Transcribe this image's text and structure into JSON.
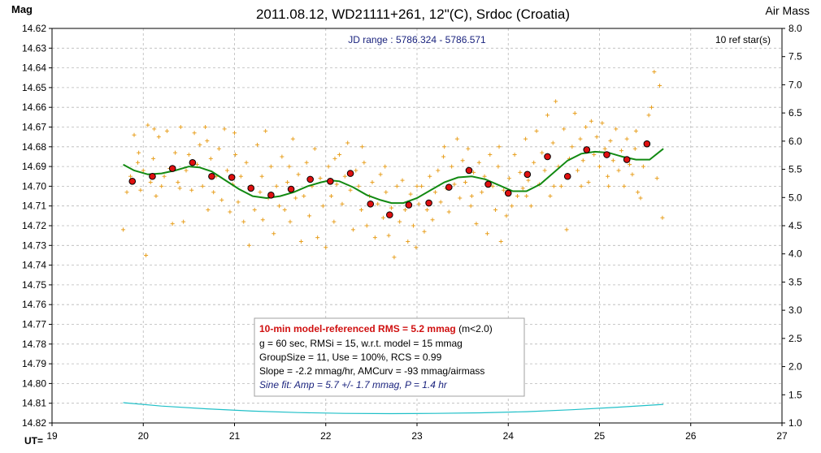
{
  "chart_data": {
    "type": "scatter",
    "title": "2011.08.12, WD21111+261, 12\"(C), Srdoc (Croatia)",
    "ylabel_left": "Mag",
    "ylabel_right": "Air Mass",
    "xlabel": "UT=",
    "jd_range_label": "JD range : 5786.324 - 5786.571",
    "ref_stars_label": "10 ref star(s)",
    "x_range": [
      19,
      27
    ],
    "x_ticks": [
      "19",
      "20",
      "21",
      "22",
      "23",
      "24",
      "25",
      "26",
      "27"
    ],
    "y_left_range": [
      14.62,
      14.82
    ],
    "y_left_reversed": true,
    "y_left_ticks": [
      "14.62",
      "14.63",
      "14.64",
      "14.65",
      "14.66",
      "14.67",
      "14.68",
      "14.69",
      "14.70",
      "14.71",
      "14.72",
      "14.73",
      "14.74",
      "14.75",
      "14.76",
      "14.77",
      "14.78",
      "14.79",
      "14.80",
      "14.81",
      "14.82"
    ],
    "y_right_range": [
      1.0,
      8.0
    ],
    "y_right_ticks": [
      "1.0",
      "1.5",
      "2.0",
      "2.5",
      "3.0",
      "3.5",
      "4.0",
      "4.5",
      "5.0",
      "5.5",
      "6.0",
      "6.5",
      "7.0",
      "7.5",
      "8.0"
    ],
    "grid": true,
    "colors": {
      "raw": "#e8a020",
      "binned": "#e01010",
      "model": "#128a12",
      "airmass": "#20c0c8",
      "title": "#000000",
      "jd": "#1a237e",
      "grid": "#b8b8b8"
    },
    "binned_points": [
      {
        "x": 19.88,
        "y": 14.6975
      },
      {
        "x": 20.1,
        "y": 14.695
      },
      {
        "x": 20.32,
        "y": 14.691
      },
      {
        "x": 20.54,
        "y": 14.688
      },
      {
        "x": 20.75,
        "y": 14.695
      },
      {
        "x": 20.97,
        "y": 14.6955
      },
      {
        "x": 21.18,
        "y": 14.701
      },
      {
        "x": 21.4,
        "y": 14.7045
      },
      {
        "x": 21.62,
        "y": 14.7015
      },
      {
        "x": 21.83,
        "y": 14.6965
      },
      {
        "x": 22.05,
        "y": 14.6975
      },
      {
        "x": 22.27,
        "y": 14.6935
      },
      {
        "x": 22.49,
        "y": 14.709
      },
      {
        "x": 22.7,
        "y": 14.7145
      },
      {
        "x": 22.91,
        "y": 14.7095
      },
      {
        "x": 23.13,
        "y": 14.7085
      },
      {
        "x": 23.35,
        "y": 14.7005
      },
      {
        "x": 23.57,
        "y": 14.692
      },
      {
        "x": 23.78,
        "y": 14.699
      },
      {
        "x": 24.0,
        "y": 14.7035
      },
      {
        "x": 24.21,
        "y": 14.694
      },
      {
        "x": 24.43,
        "y": 14.685
      },
      {
        "x": 24.65,
        "y": 14.695
      },
      {
        "x": 24.86,
        "y": 14.6815
      },
      {
        "x": 25.08,
        "y": 14.684
      },
      {
        "x": 25.3,
        "y": 14.6865
      },
      {
        "x": 25.52,
        "y": 14.6785
      }
    ],
    "model_curve": [
      {
        "x": 19.78,
        "y": 14.689
      },
      {
        "x": 19.9,
        "y": 14.692
      },
      {
        "x": 20.05,
        "y": 14.694
      },
      {
        "x": 20.2,
        "y": 14.6935
      },
      {
        "x": 20.35,
        "y": 14.692
      },
      {
        "x": 20.5,
        "y": 14.69
      },
      {
        "x": 20.62,
        "y": 14.6905
      },
      {
        "x": 20.75,
        "y": 14.6925
      },
      {
        "x": 20.9,
        "y": 14.697
      },
      {
        "x": 21.05,
        "y": 14.7015
      },
      {
        "x": 21.2,
        "y": 14.705
      },
      {
        "x": 21.35,
        "y": 14.706
      },
      {
        "x": 21.5,
        "y": 14.705
      },
      {
        "x": 21.65,
        "y": 14.703
      },
      {
        "x": 21.8,
        "y": 14.7
      },
      {
        "x": 21.95,
        "y": 14.698
      },
      {
        "x": 22.05,
        "y": 14.697
      },
      {
        "x": 22.15,
        "y": 14.6975
      },
      {
        "x": 22.3,
        "y": 14.7005
      },
      {
        "x": 22.45,
        "y": 14.7045
      },
      {
        "x": 22.6,
        "y": 14.707
      },
      {
        "x": 22.72,
        "y": 14.7085
      },
      {
        "x": 22.85,
        "y": 14.7085
      },
      {
        "x": 23.0,
        "y": 14.706
      },
      {
        "x": 23.15,
        "y": 14.702
      },
      {
        "x": 23.3,
        "y": 14.698
      },
      {
        "x": 23.45,
        "y": 14.6955
      },
      {
        "x": 23.6,
        "y": 14.695
      },
      {
        "x": 23.75,
        "y": 14.6965
      },
      {
        "x": 23.9,
        "y": 14.6995
      },
      {
        "x": 24.05,
        "y": 14.7025
      },
      {
        "x": 24.2,
        "y": 14.7025
      },
      {
        "x": 24.35,
        "y": 14.699
      },
      {
        "x": 24.5,
        "y": 14.693
      },
      {
        "x": 24.65,
        "y": 14.687
      },
      {
        "x": 24.8,
        "y": 14.6835
      },
      {
        "x": 24.95,
        "y": 14.6825
      },
      {
        "x": 25.1,
        "y": 14.683
      },
      {
        "x": 25.25,
        "y": 14.685
      },
      {
        "x": 25.4,
        "y": 14.6865
      },
      {
        "x": 25.55,
        "y": 14.6865
      },
      {
        "x": 25.7,
        "y": 14.681
      }
    ],
    "airmass_curve": [
      {
        "x": 19.78,
        "y": 1.36
      },
      {
        "x": 20.2,
        "y": 1.3
      },
      {
        "x": 20.7,
        "y": 1.25
      },
      {
        "x": 21.2,
        "y": 1.21
      },
      {
        "x": 21.7,
        "y": 1.185
      },
      {
        "x": 22.2,
        "y": 1.17
      },
      {
        "x": 22.7,
        "y": 1.165
      },
      {
        "x": 23.2,
        "y": 1.17
      },
      {
        "x": 23.7,
        "y": 1.18
      },
      {
        "x": 24.2,
        "y": 1.2
      },
      {
        "x": 24.7,
        "y": 1.235
      },
      {
        "x": 25.2,
        "y": 1.28
      },
      {
        "x": 25.7,
        "y": 1.33
      }
    ],
    "raw_points": [
      {
        "x": 19.78,
        "y": 14.722
      },
      {
        "x": 19.82,
        "y": 14.703
      },
      {
        "x": 19.86,
        "y": 14.695
      },
      {
        "x": 19.9,
        "y": 14.674
      },
      {
        "x": 19.94,
        "y": 14.688
      },
      {
        "x": 19.97,
        "y": 14.702
      },
      {
        "x": 20.0,
        "y": 14.692
      },
      {
        "x": 20.03,
        "y": 14.735
      },
      {
        "x": 20.05,
        "y": 14.669
      },
      {
        "x": 20.08,
        "y": 14.698
      },
      {
        "x": 20.11,
        "y": 14.686
      },
      {
        "x": 20.14,
        "y": 14.705
      },
      {
        "x": 20.17,
        "y": 14.675
      },
      {
        "x": 20.2,
        "y": 14.7
      },
      {
        "x": 20.23,
        "y": 14.695
      },
      {
        "x": 20.26,
        "y": 14.672
      },
      {
        "x": 20.29,
        "y": 14.691
      },
      {
        "x": 20.32,
        "y": 14.719
      },
      {
        "x": 20.35,
        "y": 14.683
      },
      {
        "x": 20.38,
        "y": 14.698
      },
      {
        "x": 20.41,
        "y": 14.67
      },
      {
        "x": 20.44,
        "y": 14.718
      },
      {
        "x": 20.47,
        "y": 14.692
      },
      {
        "x": 20.5,
        "y": 14.684
      },
      {
        "x": 20.53,
        "y": 14.702
      },
      {
        "x": 20.56,
        "y": 14.673
      },
      {
        "x": 20.59,
        "y": 14.689
      },
      {
        "x": 20.62,
        "y": 14.679
      },
      {
        "x": 20.65,
        "y": 14.7
      },
      {
        "x": 20.68,
        "y": 14.67
      },
      {
        "x": 20.71,
        "y": 14.712
      },
      {
        "x": 20.74,
        "y": 14.686
      },
      {
        "x": 20.77,
        "y": 14.703
      },
      {
        "x": 20.8,
        "y": 14.695
      },
      {
        "x": 20.83,
        "y": 14.681
      },
      {
        "x": 20.86,
        "y": 14.707
      },
      {
        "x": 20.89,
        "y": 14.671
      },
      {
        "x": 20.92,
        "y": 14.692
      },
      {
        "x": 20.95,
        "y": 14.713
      },
      {
        "x": 20.98,
        "y": 14.699
      },
      {
        "x": 21.01,
        "y": 14.684
      },
      {
        "x": 21.04,
        "y": 14.708
      },
      {
        "x": 21.07,
        "y": 14.695
      },
      {
        "x": 21.1,
        "y": 14.718
      },
      {
        "x": 21.13,
        "y": 14.688
      },
      {
        "x": 21.16,
        "y": 14.73
      },
      {
        "x": 21.19,
        "y": 14.7
      },
      {
        "x": 21.22,
        "y": 14.712
      },
      {
        "x": 21.25,
        "y": 14.679
      },
      {
        "x": 21.28,
        "y": 14.703
      },
      {
        "x": 21.31,
        "y": 14.717
      },
      {
        "x": 21.34,
        "y": 14.672
      },
      {
        "x": 21.37,
        "y": 14.706
      },
      {
        "x": 21.4,
        "y": 14.69
      },
      {
        "x": 21.43,
        "y": 14.724
      },
      {
        "x": 21.46,
        "y": 14.7
      },
      {
        "x": 21.49,
        "y": 14.71
      },
      {
        "x": 21.52,
        "y": 14.685
      },
      {
        "x": 21.55,
        "y": 14.712
      },
      {
        "x": 21.58,
        "y": 14.698
      },
      {
        "x": 21.61,
        "y": 14.718
      },
      {
        "x": 21.64,
        "y": 14.676
      },
      {
        "x": 21.67,
        "y": 14.706
      },
      {
        "x": 21.7,
        "y": 14.694
      },
      {
        "x": 21.73,
        "y": 14.728
      },
      {
        "x": 21.76,
        "y": 14.705
      },
      {
        "x": 21.79,
        "y": 14.688
      },
      {
        "x": 21.82,
        "y": 14.715
      },
      {
        "x": 21.85,
        "y": 14.7
      },
      {
        "x": 21.88,
        "y": 14.681
      },
      {
        "x": 21.91,
        "y": 14.726
      },
      {
        "x": 21.94,
        "y": 14.696
      },
      {
        "x": 21.97,
        "y": 14.71
      },
      {
        "x": 22.0,
        "y": 14.731
      },
      {
        "x": 22.03,
        "y": 14.69
      },
      {
        "x": 22.06,
        "y": 14.705
      },
      {
        "x": 22.09,
        "y": 14.718
      },
      {
        "x": 22.12,
        "y": 14.699
      },
      {
        "x": 22.15,
        "y": 14.684
      },
      {
        "x": 22.18,
        "y": 14.709
      },
      {
        "x": 22.21,
        "y": 14.695
      },
      {
        "x": 22.24,
        "y": 14.678
      },
      {
        "x": 22.27,
        "y": 14.702
      },
      {
        "x": 22.3,
        "y": 14.722
      },
      {
        "x": 22.33,
        "y": 14.692
      },
      {
        "x": 22.36,
        "y": 14.7
      },
      {
        "x": 22.39,
        "y": 14.712
      },
      {
        "x": 22.42,
        "y": 14.688
      },
      {
        "x": 22.45,
        "y": 14.72
      },
      {
        "x": 22.48,
        "y": 14.705
      },
      {
        "x": 22.51,
        "y": 14.698
      },
      {
        "x": 22.54,
        "y": 14.726
      },
      {
        "x": 22.57,
        "y": 14.709
      },
      {
        "x": 22.6,
        "y": 14.694
      },
      {
        "x": 22.63,
        "y": 14.716
      },
      {
        "x": 22.66,
        "y": 14.703
      },
      {
        "x": 22.69,
        "y": 14.725
      },
      {
        "x": 22.72,
        "y": 14.711
      },
      {
        "x": 22.75,
        "y": 14.736
      },
      {
        "x": 22.78,
        "y": 14.7
      },
      {
        "x": 22.81,
        "y": 14.718
      },
      {
        "x": 22.84,
        "y": 14.697
      },
      {
        "x": 22.87,
        "y": 14.712
      },
      {
        "x": 22.9,
        "y": 14.728
      },
      {
        "x": 22.93,
        "y": 14.704
      },
      {
        "x": 22.96,
        "y": 14.72
      },
      {
        "x": 22.99,
        "y": 14.731
      },
      {
        "x": 23.02,
        "y": 14.709
      },
      {
        "x": 23.05,
        "y": 14.7
      },
      {
        "x": 23.08,
        "y": 14.723
      },
      {
        "x": 23.11,
        "y": 14.712
      },
      {
        "x": 23.14,
        "y": 14.695
      },
      {
        "x": 23.17,
        "y": 14.717
      },
      {
        "x": 23.2,
        "y": 14.703
      },
      {
        "x": 23.23,
        "y": 14.692
      },
      {
        "x": 23.26,
        "y": 14.708
      },
      {
        "x": 23.29,
        "y": 14.685
      },
      {
        "x": 23.32,
        "y": 14.701
      },
      {
        "x": 23.35,
        "y": 14.713
      },
      {
        "x": 23.38,
        "y": 14.69
      },
      {
        "x": 23.41,
        "y": 14.699
      },
      {
        "x": 23.44,
        "y": 14.676
      },
      {
        "x": 23.47,
        "y": 14.706
      },
      {
        "x": 23.5,
        "y": 14.687
      },
      {
        "x": 23.53,
        "y": 14.698
      },
      {
        "x": 23.56,
        "y": 14.681
      },
      {
        "x": 23.59,
        "y": 14.71
      },
      {
        "x": 23.62,
        "y": 14.693
      },
      {
        "x": 23.65,
        "y": 14.719
      },
      {
        "x": 23.68,
        "y": 14.688
      },
      {
        "x": 23.71,
        "y": 14.703
      },
      {
        "x": 23.74,
        "y": 14.695
      },
      {
        "x": 23.77,
        "y": 14.724
      },
      {
        "x": 23.8,
        "y": 14.684
      },
      {
        "x": 23.83,
        "y": 14.7
      },
      {
        "x": 23.86,
        "y": 14.712
      },
      {
        "x": 23.89,
        "y": 14.69
      },
      {
        "x": 23.92,
        "y": 14.728
      },
      {
        "x": 23.95,
        "y": 14.702
      },
      {
        "x": 23.98,
        "y": 14.715
      },
      {
        "x": 24.01,
        "y": 14.696
      },
      {
        "x": 24.04,
        "y": 14.71
      },
      {
        "x": 24.07,
        "y": 14.684
      },
      {
        "x": 24.1,
        "y": 14.705
      },
      {
        "x": 24.13,
        "y": 14.693
      },
      {
        "x": 24.16,
        "y": 14.701
      },
      {
        "x": 24.19,
        "y": 14.676
      },
      {
        "x": 24.22,
        "y": 14.697
      },
      {
        "x": 24.25,
        "y": 14.71
      },
      {
        "x": 24.28,
        "y": 14.688
      },
      {
        "x": 24.31,
        "y": 14.672
      },
      {
        "x": 24.34,
        "y": 14.699
      },
      {
        "x": 24.37,
        "y": 14.683
      },
      {
        "x": 24.4,
        "y": 14.692
      },
      {
        "x": 24.43,
        "y": 14.664
      },
      {
        "x": 24.46,
        "y": 14.705
      },
      {
        "x": 24.49,
        "y": 14.678
      },
      {
        "x": 24.52,
        "y": 14.657
      },
      {
        "x": 24.55,
        "y": 14.69
      },
      {
        "x": 24.58,
        "y": 14.7
      },
      {
        "x": 24.61,
        "y": 14.671
      },
      {
        "x": 24.64,
        "y": 14.722
      },
      {
        "x": 24.67,
        "y": 14.686
      },
      {
        "x": 24.7,
        "y": 14.68
      },
      {
        "x": 24.73,
        "y": 14.663
      },
      {
        "x": 24.76,
        "y": 14.692
      },
      {
        "x": 24.79,
        "y": 14.676
      },
      {
        "x": 24.82,
        "y": 14.687
      },
      {
        "x": 24.85,
        "y": 14.67
      },
      {
        "x": 24.88,
        "y": 14.698
      },
      {
        "x": 24.91,
        "y": 14.667
      },
      {
        "x": 24.94,
        "y": 14.684
      },
      {
        "x": 24.97,
        "y": 14.675
      },
      {
        "x": 25.0,
        "y": 14.69
      },
      {
        "x": 25.03,
        "y": 14.668
      },
      {
        "x": 25.06,
        "y": 14.681
      },
      {
        "x": 25.09,
        "y": 14.695
      },
      {
        "x": 25.12,
        "y": 14.677
      },
      {
        "x": 25.15,
        "y": 14.687
      },
      {
        "x": 25.18,
        "y": 14.671
      },
      {
        "x": 25.21,
        "y": 14.692
      },
      {
        "x": 25.24,
        "y": 14.682
      },
      {
        "x": 25.27,
        "y": 14.7
      },
      {
        "x": 25.3,
        "y": 14.676
      },
      {
        "x": 25.33,
        "y": 14.689
      },
      {
        "x": 25.36,
        "y": 14.694
      },
      {
        "x": 25.39,
        "y": 14.681
      },
      {
        "x": 25.42,
        "y": 14.703
      },
      {
        "x": 25.45,
        "y": 14.706
      },
      {
        "x": 25.48,
        "y": 14.69
      },
      {
        "x": 25.51,
        "y": 14.678
      },
      {
        "x": 25.54,
        "y": 14.664
      },
      {
        "x": 25.57,
        "y": 14.66
      },
      {
        "x": 25.6,
        "y": 14.642
      },
      {
        "x": 25.63,
        "y": 14.696
      },
      {
        "x": 25.66,
        "y": 14.649
      },
      {
        "x": 25.69,
        "y": 14.716
      },
      {
        "x": 19.95,
        "y": 14.683
      },
      {
        "x": 20.12,
        "y": 14.671
      },
      {
        "x": 20.4,
        "y": 14.701
      },
      {
        "x": 20.7,
        "y": 14.677
      },
      {
        "x": 21.0,
        "y": 14.673
      },
      {
        "x": 21.3,
        "y": 14.695
      },
      {
        "x": 21.6,
        "y": 14.69
      },
      {
        "x": 22.1,
        "y": 14.686
      },
      {
        "x": 22.4,
        "y": 14.68
      },
      {
        "x": 22.65,
        "y": 14.69
      },
      {
        "x": 23.0,
        "y": 14.7
      },
      {
        "x": 23.3,
        "y": 14.68
      },
      {
        "x": 23.6,
        "y": 14.705
      },
      {
        "x": 23.9,
        "y": 14.68
      },
      {
        "x": 24.2,
        "y": 14.705
      },
      {
        "x": 24.5,
        "y": 14.7
      },
      {
        "x": 24.8,
        "y": 14.7
      },
      {
        "x": 25.1,
        "y": 14.7
      },
      {
        "x": 25.4,
        "y": 14.672
      }
    ]
  },
  "info_box": {
    "rms_label": "10-min model-referenced RMS = 5.2 mmag",
    "rms_suffix": " (m<2.0)",
    "line2": "g = 60 sec, RMSi = 15, w.r.t. model = 15 mmag",
    "line3": "GroupSize = 11, Use = 100%, RCS = 0.99",
    "line4": "Slope = -2.2 mmag/hr, AMCurv = -93 mmag/airmass",
    "line5": "Sine fit: Amp = 5.7 +/- 1.7 mmag, P = 1.4 hr"
  }
}
